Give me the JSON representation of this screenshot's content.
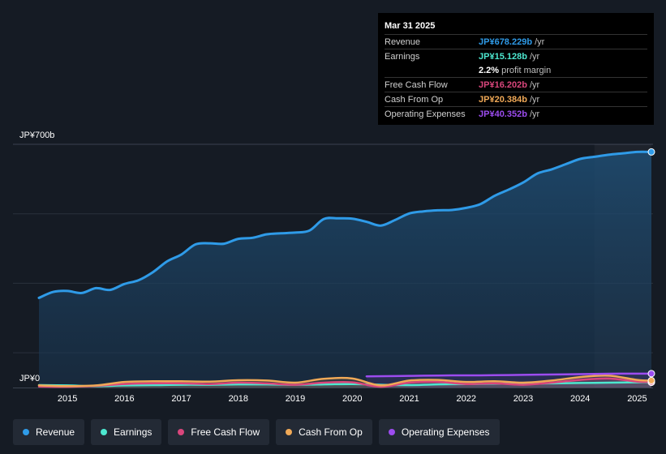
{
  "colors": {
    "revenue": "#2f9be8",
    "earnings": "#4de8d0",
    "fcf": "#d9467c",
    "cfo": "#f0a957",
    "opex": "#9c4cef"
  },
  "tooltip": {
    "date": "Mar 31 2025",
    "rows": [
      {
        "label": "Revenue",
        "value": "JP¥678.229b",
        "unit": "/yr",
        "color": "#2f9be8"
      },
      {
        "label": "Earnings",
        "value": "JP¥15.128b",
        "unit": "/yr",
        "color": "#4de8d0"
      },
      {
        "label": "",
        "value": "2.2%",
        "unit": "profit margin",
        "color": "#ffffff"
      },
      {
        "label": "Free Cash Flow",
        "value": "JP¥16.202b",
        "unit": "/yr",
        "color": "#d9467c"
      },
      {
        "label": "Cash From Op",
        "value": "JP¥20.384b",
        "unit": "/yr",
        "color": "#f0a957"
      },
      {
        "label": "Operating Expenses",
        "value": "JP¥40.352b",
        "unit": "/yr",
        "color": "#9c4cef"
      }
    ]
  },
  "legend": [
    {
      "label": "Revenue",
      "color": "#2f9be8"
    },
    {
      "label": "Earnings",
      "color": "#4de8d0"
    },
    {
      "label": "Free Cash Flow",
      "color": "#d9467c"
    },
    {
      "label": "Cash From Op",
      "color": "#f0a957"
    },
    {
      "label": "Operating Expenses",
      "color": "#9c4cef"
    }
  ],
  "chart_data": {
    "type": "area",
    "title": "",
    "xlabel": "",
    "ylabel": "",
    "ylim": [
      0,
      700
    ],
    "xlim": [
      2014.5,
      2025.25
    ],
    "y_tick_labels": [
      "JP¥700b",
      "JP¥0"
    ],
    "x_tick_labels": [
      "2015",
      "2016",
      "2017",
      "2018",
      "2019",
      "2020",
      "2021",
      "2022",
      "2023",
      "2024",
      "2025"
    ],
    "highlight_from": 2024.25,
    "series": [
      {
        "name": "Revenue",
        "x": [
          2014.5,
          2014.75,
          2015.0,
          2015.25,
          2015.5,
          2015.75,
          2016.0,
          2016.25,
          2016.5,
          2016.75,
          2017.0,
          2017.25,
          2017.5,
          2017.75,
          2018.0,
          2018.25,
          2018.5,
          2018.75,
          2019.0,
          2019.25,
          2019.5,
          2019.75,
          2020.0,
          2020.25,
          2020.5,
          2020.75,
          2021.0,
          2021.25,
          2021.5,
          2021.75,
          2022.0,
          2022.25,
          2022.5,
          2022.75,
          2023.0,
          2023.25,
          2023.5,
          2023.75,
          2024.0,
          2024.25,
          2024.5,
          2024.75,
          2025.0,
          2025.25
        ],
        "values": [
          258,
          275,
          278,
          272,
          286,
          281,
          298,
          309,
          332,
          363,
          383,
          412,
          415,
          414,
          428,
          431,
          441,
          444,
          446,
          452,
          485,
          487,
          486,
          477,
          466,
          482,
          501,
          507,
          510,
          511,
          517,
          528,
          552,
          570,
          590,
          616,
          628,
          643,
          658,
          664,
          670,
          674,
          678,
          678
        ]
      },
      {
        "name": "Earnings",
        "x": [
          2014.5,
          2015.0,
          2015.5,
          2016.0,
          2016.5,
          2017.0,
          2017.5,
          2018.0,
          2018.5,
          2019.0,
          2019.5,
          2020.0,
          2020.5,
          2021.0,
          2021.5,
          2022.0,
          2022.5,
          2023.0,
          2023.5,
          2024.0,
          2024.5,
          2025.0,
          2025.25
        ],
        "values": [
          7,
          6,
          4,
          6,
          7,
          8,
          8,
          9,
          9,
          8,
          9,
          10,
          8,
          7,
          9,
          10,
          11,
          11,
          12,
          13,
          14,
          15,
          15
        ]
      },
      {
        "name": "Free Cash Flow",
        "x": [
          2014.5,
          2015.0,
          2015.5,
          2016.0,
          2016.5,
          2017.0,
          2017.5,
          2018.0,
          2018.5,
          2019.0,
          2019.5,
          2020.0,
          2020.5,
          2021.0,
          2021.5,
          2022.0,
          2022.5,
          2023.0,
          2023.5,
          2024.0,
          2024.5,
          2025.0,
          2025.25
        ],
        "values": [
          3,
          2,
          5,
          10,
          12,
          12,
          10,
          14,
          12,
          8,
          14,
          15,
          2,
          14,
          16,
          10,
          12,
          8,
          14,
          22,
          26,
          17,
          16
        ]
      },
      {
        "name": "Cash From Op",
        "x": [
          2014.5,
          2015.0,
          2015.5,
          2016.0,
          2016.5,
          2017.0,
          2017.5,
          2018.0,
          2018.5,
          2019.0,
          2019.5,
          2020.0,
          2020.5,
          2021.0,
          2021.5,
          2022.0,
          2022.5,
          2023.0,
          2023.5,
          2024.0,
          2024.5,
          2025.0,
          2025.25
        ],
        "values": [
          6,
          4,
          6,
          16,
          18,
          18,
          17,
          21,
          20,
          14,
          25,
          26,
          6,
          20,
          22,
          16,
          18,
          14,
          20,
          30,
          34,
          22,
          20
        ]
      },
      {
        "name": "Operating Expenses",
        "x": [
          2020.25,
          2020.75,
          2021.25,
          2021.75,
          2022.25,
          2022.75,
          2023.25,
          2023.75,
          2024.25,
          2024.75,
          2025.25
        ],
        "values": [
          32,
          33,
          34,
          35,
          35,
          36,
          37,
          38,
          39,
          40,
          40
        ]
      }
    ]
  }
}
